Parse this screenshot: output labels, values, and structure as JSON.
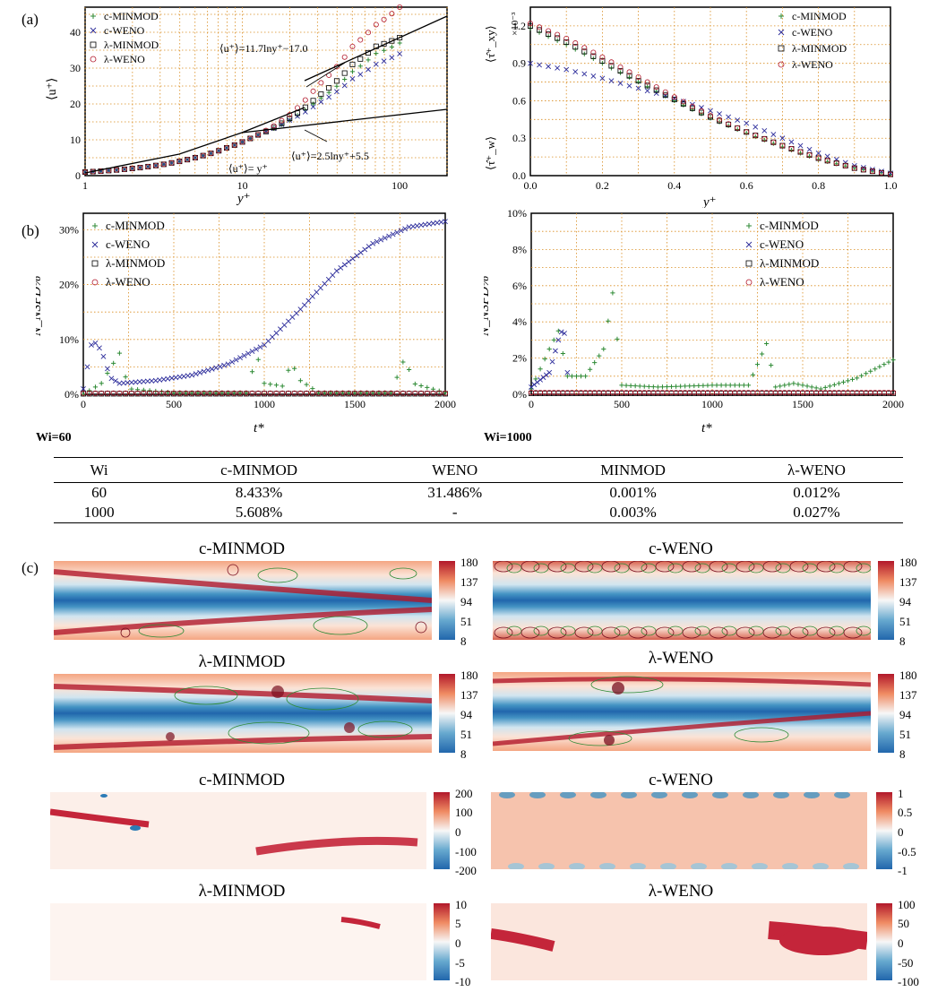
{
  "panel_labels": {
    "a": "(a)",
    "b": "(b)",
    "c": "(c)"
  },
  "plot_a_left": {
    "ylabel": "⟨u⁺⟩",
    "xlabel": "y⁺",
    "xticks": [
      "1",
      "10",
      "100"
    ],
    "yticks": [
      "0",
      "10",
      "20",
      "30",
      "40"
    ],
    "legend": [
      "c-MINMOD",
      "c-WENO",
      "λ-MINMOD",
      "λ-WENO"
    ],
    "annotations": [
      "⟨u⁺⟩=11.7lny⁺−17.0",
      "⟨u⁺⟩=2.5lny⁺+5.5",
      "⟨u⁺⟩= y⁺"
    ]
  },
  "plot_a_right": {
    "ylabel_top": "⟨τ̂⁺_xy⟩",
    "ylabel_bottom": "⟨τ̂⁺_w⟩",
    "exponent": "×10⁻³",
    "xlabel": "y⁺",
    "xticks": [
      "0.0",
      "0.2",
      "0.4",
      "0.6",
      "0.8",
      "1.0"
    ],
    "yticks": [
      "0.0",
      "0.3",
      "0.6",
      "0.9",
      "1.2"
    ],
    "legend": [
      "c-MINMOD",
      "c-WENO",
      "λ-MINMOD",
      "λ-WENO"
    ]
  },
  "plot_b_left": {
    "ylabel": "N_NSPD%",
    "xlabel": "t*",
    "xticks": [
      "0",
      "500",
      "1000",
      "1500",
      "2000"
    ],
    "yticks": [
      "0%",
      "10%",
      "20%",
      "30%"
    ],
    "legend": [
      "c-MINMOD",
      "c-WENO",
      "λ-MINMOD",
      "λ-WENO"
    ],
    "caption": "Wi=60"
  },
  "plot_b_right": {
    "ylabel": "N_NSPD%",
    "xlabel": "t*",
    "xticks": [
      "0",
      "500",
      "1000",
      "1500",
      "2000"
    ],
    "yticks": [
      "0%",
      "2%",
      "4%",
      "6%",
      "8%",
      "10%"
    ],
    "legend": [
      "c-MINMOD",
      "c-WENO",
      "λ-MINMOD",
      "λ-WENO"
    ],
    "caption": "Wi=1000"
  },
  "table": {
    "headers": [
      "Wi",
      "c-MINMOD",
      "WENO",
      "MINMOD",
      "λ-WENO"
    ],
    "rows": [
      [
        "60",
        "8.433%",
        "31.486%",
        "0.001%",
        "0.012%"
      ],
      [
        "1000",
        "5.608%",
        "-",
        "0.003%",
        "0.027%"
      ]
    ]
  },
  "fields": [
    {
      "title": "c-MINMOD",
      "ticks": [
        "180",
        "137",
        "94",
        "51",
        "8"
      ]
    },
    {
      "title": "c-WENO",
      "ticks": [
        "180",
        "137",
        "94",
        "51",
        "8"
      ]
    },
    {
      "title": "λ-MINMOD",
      "ticks": [
        "180",
        "137",
        "94",
        "51",
        "8"
      ]
    },
    {
      "title": "λ-WENO",
      "ticks": [
        "180",
        "137",
        "94",
        "51",
        "8"
      ]
    },
    {
      "title": "c-MINMOD",
      "ticks": [
        "200",
        "100",
        "0",
        "-100",
        "-200"
      ]
    },
    {
      "title": "c-WENO",
      "ticks": [
        "1",
        "0.5",
        "0",
        "-0.5",
        "-1"
      ]
    },
    {
      "title": "λ-MINMOD",
      "ticks": [
        "10",
        "5",
        "0",
        "-5",
        "-10"
      ]
    },
    {
      "title": "λ-WENO",
      "ticks": [
        "100",
        "50",
        "0",
        "-50",
        "-100"
      ]
    }
  ],
  "chart_data": [
    {
      "type": "scatter",
      "xscale": "log",
      "xlim": [
        1,
        200
      ],
      "ylim": [
        0,
        47
      ],
      "xlabel": "y⁺",
      "ylabel": "⟨u⁺⟩",
      "series": [
        {
          "name": "c-MINMOD",
          "x": [
            1,
            2,
            3,
            5,
            8,
            12,
            20,
            30,
            50,
            70,
            100
          ],
          "y": [
            1,
            2,
            3,
            5,
            7.8,
            11,
            15.5,
            21,
            29,
            34,
            37
          ]
        },
        {
          "name": "c-WENO",
          "x": [
            1,
            2,
            3,
            5,
            8,
            12,
            20,
            30,
            50,
            70,
            100
          ],
          "y": [
            1,
            2,
            3,
            5,
            7.8,
            11,
            15.5,
            20,
            27,
            31,
            34
          ]
        },
        {
          "name": "λ-MINMOD",
          "x": [
            1,
            2,
            3,
            5,
            8,
            12,
            20,
            30,
            50,
            70,
            100
          ],
          "y": [
            1,
            2,
            3,
            5,
            7.8,
            11,
            16,
            22,
            31,
            36,
            38.5
          ]
        },
        {
          "name": "λ-WENO",
          "x": [
            1,
            2,
            3,
            5,
            8,
            12,
            20,
            30,
            50,
            70,
            100
          ],
          "y": [
            1,
            2,
            3,
            5,
            7.8,
            11,
            17,
            25,
            36,
            42,
            47
          ]
        }
      ]
    },
    {
      "type": "scatter",
      "xlim": [
        0,
        1
      ],
      "ylim": [
        0,
        1.35
      ],
      "xlabel": "y⁺",
      "ylabel": "⟨τ̂⁺_xy⟩",
      "series": [
        {
          "name": "c-MINMOD",
          "x": [
            0,
            0.1,
            0.2,
            0.3,
            0.4,
            0.5,
            0.6,
            0.7,
            0.8,
            0.9,
            1.0
          ],
          "y": [
            1.18,
            1.05,
            0.9,
            0.75,
            0.6,
            0.46,
            0.34,
            0.23,
            0.13,
            0.06,
            0.01
          ]
        },
        {
          "name": "c-WENO",
          "x": [
            0,
            0.1,
            0.2,
            0.3,
            0.4,
            0.5,
            0.6,
            0.7,
            0.8,
            0.9,
            1.0
          ],
          "y": [
            0.9,
            0.85,
            0.78,
            0.7,
            0.62,
            0.52,
            0.42,
            0.3,
            0.18,
            0.08,
            0.02
          ]
        },
        {
          "name": "λ-MINMOD",
          "x": [
            0,
            0.1,
            0.2,
            0.3,
            0.4,
            0.5,
            0.6,
            0.7,
            0.8,
            0.9,
            1.0
          ],
          "y": [
            1.2,
            1.07,
            0.92,
            0.76,
            0.61,
            0.47,
            0.35,
            0.24,
            0.14,
            0.06,
            0.01
          ]
        },
        {
          "name": "λ-WENO",
          "x": [
            0,
            0.1,
            0.2,
            0.3,
            0.4,
            0.5,
            0.6,
            0.7,
            0.8,
            0.9,
            1.0
          ],
          "y": [
            1.22,
            1.1,
            0.95,
            0.79,
            0.63,
            0.48,
            0.35,
            0.24,
            0.14,
            0.06,
            0.01
          ]
        }
      ]
    },
    {
      "type": "scatter",
      "xlim": [
        0,
        2000
      ],
      "ylim": [
        0,
        33
      ],
      "xlabel": "t*",
      "ylabel": "N_NSPD%",
      "series": [
        {
          "name": "c-MINMOD",
          "x": [
            0,
            100,
            200,
            250,
            500,
            900,
            960,
            1000,
            1100,
            1150,
            1200,
            1300,
            1700,
            1780,
            1820,
            2000
          ],
          "y": [
            0,
            2,
            7.5,
            1,
            0.3,
            0.3,
            7.2,
            2,
            1.5,
            5.8,
            2.5,
            0.3,
            0.3,
            7,
            2,
            0.3
          ]
        },
        {
          "name": "c-WENO",
          "x": [
            0,
            50,
            100,
            150,
            200,
            400,
            600,
            800,
            1000,
            1200,
            1400,
            1600,
            1800,
            2000
          ],
          "y": [
            1,
            10,
            8,
            3,
            2,
            2.5,
            3.5,
            5.5,
            9,
            15.5,
            22.5,
            27.5,
            30.5,
            31.5
          ]
        },
        {
          "name": "λ-MINMOD",
          "x": [
            0,
            500,
            1000,
            1500,
            2000
          ],
          "y": [
            0.1,
            0.1,
            0.1,
            0.1,
            0.1
          ]
        },
        {
          "name": "λ-WENO",
          "x": [
            0,
            500,
            1000,
            1500,
            2000
          ],
          "y": [
            0.2,
            0.2,
            0.2,
            0.2,
            0.2
          ]
        }
      ]
    },
    {
      "type": "scatter",
      "xlim": [
        0,
        2000
      ],
      "ylim": [
        0,
        10
      ],
      "xlabel": "t*",
      "ylabel": "N_NSPD%",
      "series": [
        {
          "name": "c-MINMOD",
          "x": [
            0,
            100,
            150,
            200,
            300,
            400,
            450,
            500,
            700,
            1000,
            1200,
            1300,
            1350,
            1450,
            1600,
            1800,
            2000
          ],
          "y": [
            0.3,
            2.5,
            3.5,
            1,
            1,
            2.5,
            5.6,
            0.5,
            0.4,
            0.5,
            0.5,
            2.8,
            0.4,
            0.6,
            0.3,
            0.9,
            1.9
          ]
        },
        {
          "name": "c-WENO",
          "x": [
            0,
            100,
            150,
            180,
            200
          ],
          "y": [
            0.4,
            1.2,
            3,
            3.8,
            1.2
          ]
        },
        {
          "name": "λ-MINMOD",
          "x": [
            0,
            500,
            1000,
            1500,
            2000
          ],
          "y": [
            0.05,
            0.05,
            0.05,
            0.05,
            0.05
          ]
        },
        {
          "name": "λ-WENO",
          "x": [
            0,
            500,
            1000,
            1500,
            2000
          ],
          "y": [
            0.1,
            0.1,
            0.1,
            0.1,
            0.1
          ]
        }
      ]
    }
  ]
}
